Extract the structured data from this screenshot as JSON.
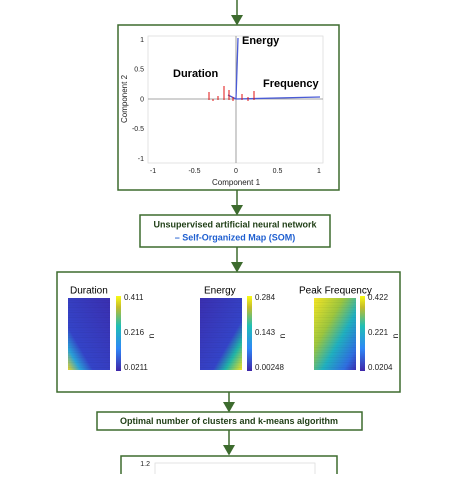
{
  "biplot": {
    "labels": [
      "Energy",
      "Duration",
      "Frequency"
    ],
    "x_label": "Component 1",
    "y_label": "Component 2",
    "x_ticks": [
      "-1",
      "-0.5",
      "0",
      "0.5",
      "1"
    ],
    "y_ticks": [
      "1",
      "0.5",
      "0",
      "-0.5",
      "-1"
    ]
  },
  "som_box": {
    "line1": "Unsupervised artificial neural network",
    "line2": "– Self-Organized Map (SOM)"
  },
  "maps": [
    {
      "title": "Duration",
      "ticks": [
        "0.411",
        "0.216",
        "0.0211"
      ],
      "unit": "n"
    },
    {
      "title": "Energy",
      "ticks": [
        "0.284",
        "0.143",
        "0.00248"
      ],
      "unit": "n"
    },
    {
      "title": "Peak Frequency",
      "ticks": [
        "0.422",
        "0.221",
        "0.0204"
      ],
      "unit": "n"
    }
  ],
  "cluster_box": {
    "text": "Optimal number of clusters and k-means algorithm"
  },
  "bottom_plot": {
    "tick": "1.2"
  }
}
